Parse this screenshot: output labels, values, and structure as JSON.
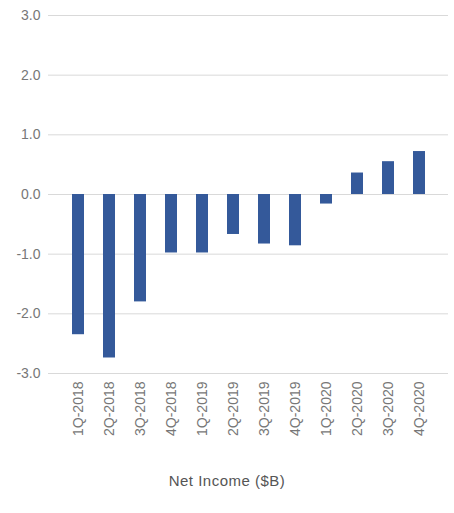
{
  "chart_data": {
    "type": "bar",
    "title": "Net Income ($B)",
    "categories": [
      "1Q-2018",
      "2Q-2018",
      "3Q-2018",
      "4Q-2018",
      "1Q-2019",
      "2Q-2019",
      "3Q-2019",
      "4Q-2019",
      "1Q-2020",
      "2Q-2020",
      "3Q-2020",
      "4Q-2020"
    ],
    "values": [
      -2.35,
      -2.74,
      -1.8,
      -0.98,
      -0.98,
      -0.67,
      -0.83,
      -0.86,
      -0.16,
      0.36,
      0.55,
      0.72
    ],
    "color": "#34599a",
    "ylim": [
      -3.0,
      3.0
    ],
    "yticks": [
      {
        "value": -3.0,
        "label": "-3.0"
      },
      {
        "value": -2.0,
        "label": "-2.0"
      },
      {
        "value": -1.0,
        "label": "-1.0"
      },
      {
        "value": 0.0,
        "label": "0.0"
      },
      {
        "value": 1.0,
        "label": "1.0"
      },
      {
        "value": 2.0,
        "label": "2.0"
      },
      {
        "value": 3.0,
        "label": "3.0"
      }
    ],
    "grid": true
  }
}
